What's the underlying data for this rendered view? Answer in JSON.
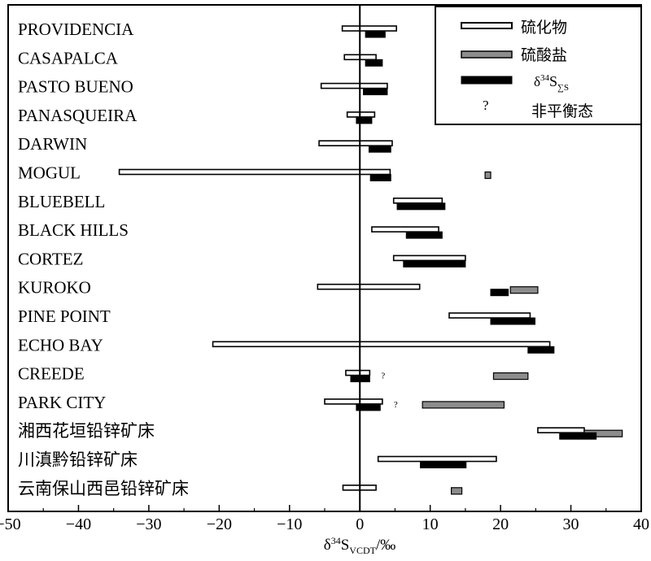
{
  "chart_data": {
    "type": "bar",
    "xlim": [
      -50,
      40
    ],
    "xticks": [
      "−50",
      "−40",
      "−30",
      "−20",
      "−10",
      "0",
      "10",
      "20",
      "30",
      "40"
    ],
    "xlabel": {
      "delta": "δ",
      "sup": "34",
      "main": "S",
      "sub": "VCDT",
      "tail": "/‰"
    },
    "legend": {
      "position": "top-right",
      "sulfide": "硫化物",
      "sulfate": "硫酸盐",
      "total": {
        "delta": "δ",
        "sup": "34",
        "main": "S",
        "sub": "∑S"
      },
      "question_symbol": "?",
      "nonequilibrium": "非平衡态"
    },
    "colors": {
      "sulfide": "#ffffff",
      "sulfate": "#8c8c8c",
      "total": "#000000"
    },
    "deposits": [
      {
        "name": "PROVIDENCIA",
        "sulfide": [
          -2.5,
          5.2
        ],
        "sulfate": null,
        "total": [
          0.8,
          3.6
        ],
        "nonequilibrium": false
      },
      {
        "name": "CASAPALCA",
        "sulfide": [
          -2.2,
          2.3
        ],
        "sulfate": null,
        "total": [
          0.8,
          3.2
        ],
        "nonequilibrium": false
      },
      {
        "name": "PASTO BUENO",
        "sulfide": [
          -5.5,
          3.9
        ],
        "sulfate": null,
        "total": [
          0.5,
          3.9
        ],
        "nonequilibrium": false
      },
      {
        "name": "PANASQUEIRA",
        "sulfide": [
          -1.8,
          2.1
        ],
        "sulfate": null,
        "total": [
          -0.5,
          1.7
        ],
        "nonequilibrium": false
      },
      {
        "name": "DARWIN",
        "sulfide": [
          -5.8,
          4.6
        ],
        "sulfate": null,
        "total": [
          1.3,
          4.4
        ],
        "nonequilibrium": false
      },
      {
        "name": "MOGUL",
        "sulfide": [
          -34.2,
          4.3
        ],
        "sulfate": [
          17.8,
          18.6
        ],
        "total": [
          1.5,
          4.4
        ],
        "nonequilibrium": false
      },
      {
        "name": "BLUEBELL",
        "sulfide": [
          4.8,
          11.7
        ],
        "sulfate": null,
        "total": [
          5.3,
          12.1
        ],
        "nonequilibrium": false
      },
      {
        "name": "BLACK HILLS",
        "sulfide": [
          1.7,
          11.2
        ],
        "sulfate": null,
        "total": [
          6.6,
          11.7
        ],
        "nonequilibrium": false
      },
      {
        "name": "CORTEZ",
        "sulfide": [
          4.8,
          15.0
        ],
        "sulfate": null,
        "total": [
          6.2,
          15.0
        ],
        "nonequilibrium": false
      },
      {
        "name": "KUROKO",
        "sulfide": [
          -6.0,
          8.5
        ],
        "sulfate": [
          21.4,
          25.3
        ],
        "total": [
          18.6,
          21.1
        ],
        "nonequilibrium": false
      },
      {
        "name": "PINE POINT",
        "sulfide": [
          12.7,
          24.2
        ],
        "sulfate": null,
        "total": [
          18.6,
          24.9
        ],
        "nonequilibrium": false
      },
      {
        "name": "ECHO BAY",
        "sulfide": [
          -20.9,
          27.0
        ],
        "sulfate": null,
        "total": [
          23.9,
          27.6
        ],
        "nonequilibrium": false
      },
      {
        "name": "CREEDE",
        "sulfide": [
          -2.0,
          1.4
        ],
        "sulfate": [
          19.0,
          23.9
        ],
        "total": [
          -1.3,
          1.4
        ],
        "nonequilibrium": true
      },
      {
        "name": "PARK CITY",
        "sulfide": [
          -5.0,
          3.2
        ],
        "sulfate": [
          8.9,
          20.5
        ],
        "total": [
          -0.5,
          2.9
        ],
        "nonequilibrium": true
      },
      {
        "name": "湘西花垣铅锌矿床",
        "sulfide": [
          25.3,
          31.9
        ],
        "sulfate": [
          31.9,
          37.3
        ],
        "total": [
          28.4,
          33.6
        ],
        "nonequilibrium": false
      },
      {
        "name": "川滇黔铅锌矿床",
        "sulfide": [
          2.6,
          19.4
        ],
        "sulfate": null,
        "total": [
          8.6,
          15.1
        ],
        "nonequilibrium": false
      },
      {
        "name": "云南保山西邑铅锌矿床",
        "sulfide": [
          -2.4,
          2.3
        ],
        "sulfate": [
          13.0,
          14.5
        ],
        "total": null,
        "nonequilibrium": false
      }
    ]
  }
}
